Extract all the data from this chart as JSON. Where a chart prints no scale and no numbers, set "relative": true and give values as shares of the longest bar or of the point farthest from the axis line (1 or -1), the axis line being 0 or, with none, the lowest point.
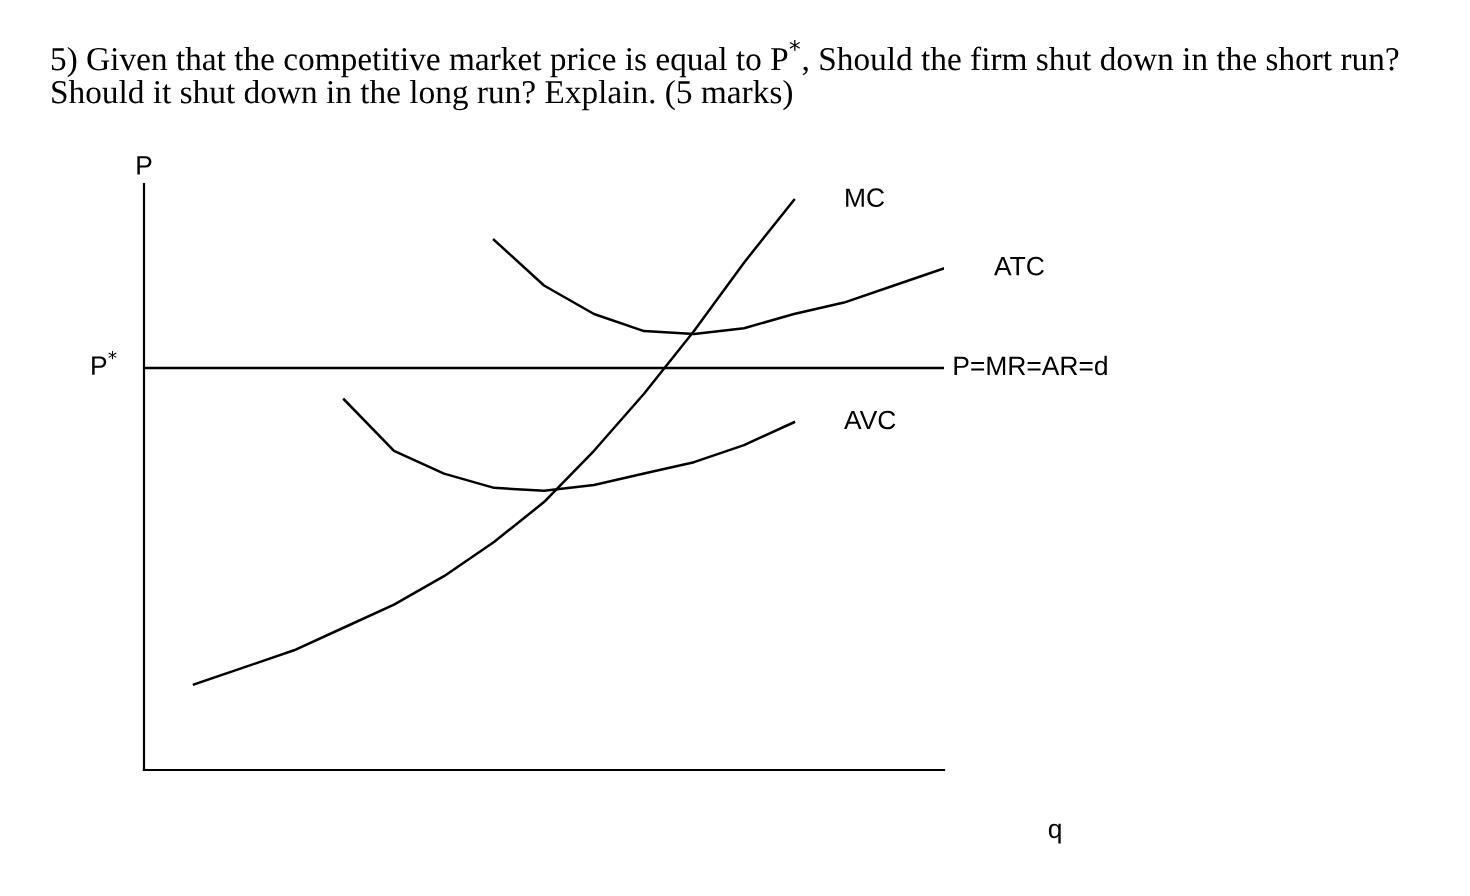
{
  "chart_data": {
    "type": "line",
    "relative": true,
    "title": "5) Given that the competitive market price is equal to P$^{*}$, Should the firm shut down in the short run?\nShould it shut down in the long run? Explain. (5 marks)",
    "xlabel": "q",
    "ylabel": "P",
    "categories": [
      null,
      null,
      null,
      null,
      null,
      null,
      null,
      null,
      null,
      null,
      null,
      null,
      null,
      null,
      null,
      null,
      null
    ],
    "series": [
      {
        "name": "MC",
        "color": "#000000",
        "values": [
          null,
          0.15,
          0.18,
          0.21,
          0.25,
          0.29,
          0.34,
          0.4,
          0.47,
          0.56,
          0.66,
          0.77,
          0.89,
          1.0,
          null,
          null,
          null
        ]
      },
      {
        "name": "ATC",
        "color": "#000000",
        "values": [
          null,
          null,
          null,
          null,
          null,
          null,
          null,
          0.93,
          0.85,
          0.8,
          0.77,
          0.765,
          0.775,
          0.8,
          0.82,
          0.85,
          0.88
        ]
      },
      {
        "name": "AVC",
        "color": "#000000",
        "values": [
          null,
          null,
          null,
          null,
          0.65,
          0.56,
          0.52,
          0.495,
          0.49,
          0.5,
          0.52,
          0.54,
          0.57,
          0.61,
          null,
          null,
          null
        ]
      }
    ],
    "ref_lines": [
      {
        "axis": "y",
        "value": 0.705,
        "label": "P=MR=AR=d",
        "color": "#000000"
      }
    ],
    "annotations": [
      "P$^{*}$"
    ],
    "legend": false,
    "marker": "none",
    "line_style": "solid"
  }
}
